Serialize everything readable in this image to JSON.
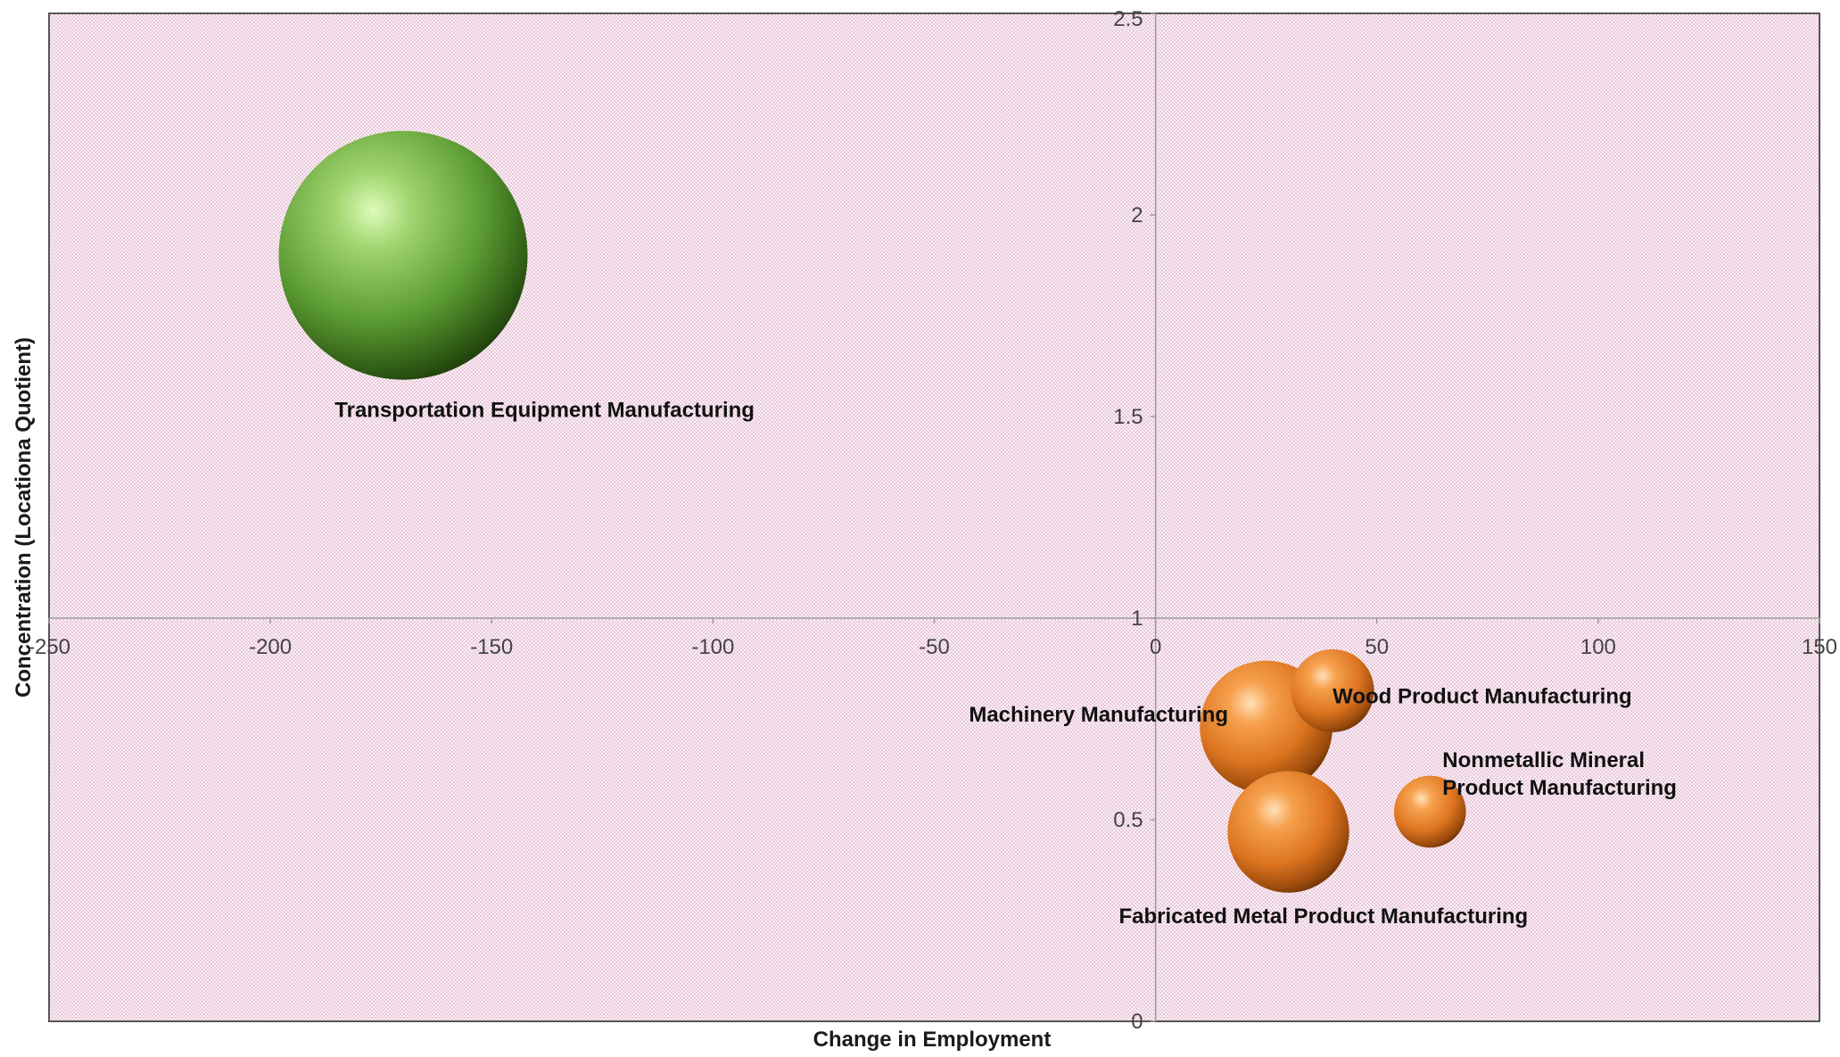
{
  "chart_data": {
    "type": "scatter",
    "subtype": "bubble",
    "title": "",
    "xlabel": "Change in Employment",
    "ylabel": "Concentration (Locationa Quotient)",
    "xlim": [
      -250,
      150
    ],
    "ylim": [
      0,
      2.5
    ],
    "x_ticks": [
      -250,
      -200,
      -150,
      -100,
      -50,
      0,
      50,
      100,
      150
    ],
    "y_ticks": [
      0,
      0.5,
      1,
      1.5,
      2,
      2.5
    ],
    "x_tick_labels": [
      "-250",
      "-200",
      "-150",
      "-100",
      "-50",
      "0",
      "50",
      "100",
      "150"
    ],
    "y_tick_labels": [
      "0",
      "0.5",
      "1",
      "1.5",
      "2",
      "2.5"
    ],
    "crosshair": {
      "x": 0,
      "y": 1
    },
    "grid": false,
    "background": "dotted pink",
    "legend": "none",
    "points": [
      {
        "label": "Transportation Equipment Manufacturing",
        "label_lines": [
          "Transportation Equipment Manufacturing"
        ],
        "x": -170,
        "y": 1.9,
        "size": 4.5,
        "color": "#6aa84f",
        "label_anchor": "below"
      },
      {
        "label": "Machinery Manufacturing",
        "label_lines": [
          "Machinery Manufacturing"
        ],
        "x": 25,
        "y": 0.73,
        "size": 2.4,
        "color": "#e07b24",
        "label_anchor": "left"
      },
      {
        "label": "Fabricated Metal Product Manufacturing",
        "label_lines": [
          "Fabricated Metal Product Manufacturing"
        ],
        "x": 30,
        "y": 0.47,
        "size": 2.2,
        "color": "#e07b24",
        "label_anchor": "below"
      },
      {
        "label": "Wood Product Manufacturing",
        "label_lines": [
          "Wood Product Manufacturing"
        ],
        "x": 40,
        "y": 0.82,
        "size": 1.5,
        "color": "#e07b24",
        "label_anchor": "right"
      },
      {
        "label": "Nonmetallic Mineral Product Manufacturing",
        "label_lines": [
          "Nonmetallic Mineral",
          "Product Manufacturing"
        ],
        "x": 62,
        "y": 0.52,
        "size": 1.3,
        "color": "#e07b24",
        "label_anchor": "right-above"
      }
    ]
  }
}
